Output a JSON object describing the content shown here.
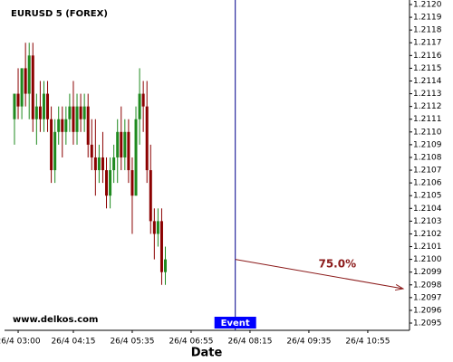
{
  "chart_data": {
    "type": "candlestick",
    "title": "EURUSD 5 (FOREX)",
    "watermark": "www.delkos.com",
    "x_label": "Date",
    "up_color": "#1f8a1f",
    "down_color": "#8b0000",
    "xlim": [
      161.5,
      711.7
    ],
    "ylim": [
      1.2095,
      1.212
    ],
    "xticks": [
      {
        "value": 180,
        "label": "26/4 03:00"
      },
      {
        "value": 255,
        "label": "26/4 04:15"
      },
      {
        "value": 335,
        "label": "26/4 05:35"
      },
      {
        "value": 415,
        "label": "26/4 06:55"
      },
      {
        "value": 495,
        "label": "26/4 08:15"
      },
      {
        "value": 575,
        "label": "26/4 09:35"
      },
      {
        "value": 655,
        "label": "26/4 10:55"
      }
    ],
    "yticks": [
      1.2095,
      1.2096,
      1.2097,
      1.2098,
      1.2099,
      {
        "value": 1.21,
        "label": "1.2100"
      },
      1.2101,
      1.2102,
      1.2103,
      1.2104,
      1.2105,
      1.2106,
      1.2107,
      1.2108,
      1.2109,
      {
        "value": 1.211,
        "label": "1.2110"
      },
      1.2111,
      1.2112,
      1.2113,
      1.2114,
      1.2115,
      1.2116,
      1.2117,
      1.2118,
      1.2119,
      {
        "value": 1.212,
        "label": "1.2120"
      }
    ],
    "x": [
      175,
      180,
      185,
      190,
      195,
      200,
      205,
      210,
      215,
      220,
      225,
      230,
      235,
      240,
      245,
      250,
      255,
      260,
      265,
      270,
      275,
      280,
      285,
      290,
      295,
      300,
      305,
      310,
      315,
      320,
      325,
      330,
      335,
      340,
      345,
      350,
      355,
      360,
      365,
      370,
      375,
      380
    ],
    "open": [
      1.2111,
      1.2113,
      1.2112,
      1.2115,
      1.2113,
      1.2116,
      1.2111,
      1.2112,
      1.2111,
      1.2113,
      1.2111,
      1.2107,
      1.211,
      1.2111,
      1.211,
      1.2111,
      1.2112,
      1.211,
      1.2112,
      1.2111,
      1.2112,
      1.2109,
      1.2108,
      1.2107,
      1.2108,
      1.2107,
      1.2105,
      1.2107,
      1.2108,
      1.211,
      1.2108,
      1.211,
      1.2107,
      1.2105,
      1.2111,
      1.2113,
      1.2112,
      1.2107,
      1.2103,
      1.2102,
      1.2103,
      1.2099
    ],
    "high": [
      1.2113,
      1.2115,
      1.2115,
      1.2117,
      1.2117,
      1.2117,
      1.2113,
      1.2114,
      1.2114,
      1.2114,
      1.2112,
      1.2111,
      1.2112,
      1.2112,
      1.2112,
      1.2113,
      1.2114,
      1.2113,
      1.2113,
      1.2113,
      1.2113,
      1.2111,
      1.2111,
      1.2109,
      1.211,
      1.2108,
      1.2108,
      1.2109,
      1.2111,
      1.2112,
      1.2111,
      1.2111,
      1.2108,
      1.2112,
      1.2115,
      1.2114,
      1.2114,
      1.2109,
      1.2104,
      1.2104,
      1.2104,
      1.2101
    ],
    "low": [
      1.2109,
      1.2111,
      1.2111,
      1.2112,
      1.2111,
      1.211,
      1.2109,
      1.211,
      1.211,
      1.211,
      1.2106,
      1.2106,
      1.2109,
      1.2108,
      1.2109,
      1.211,
      1.2109,
      1.2109,
      1.211,
      1.211,
      1.2108,
      1.2107,
      1.2105,
      1.2106,
      1.2106,
      1.2104,
      1.2104,
      1.2106,
      1.2106,
      1.2107,
      1.2107,
      1.2106,
      1.2102,
      1.2105,
      1.2109,
      1.211,
      1.2106,
      1.2102,
      1.21,
      1.2101,
      1.2098,
      1.2098
    ],
    "close": [
      1.2113,
      1.2112,
      1.2115,
      1.2113,
      1.2116,
      1.2111,
      1.2112,
      1.2111,
      1.2113,
      1.2111,
      1.2107,
      1.211,
      1.2111,
      1.211,
      1.2111,
      1.2112,
      1.211,
      1.2112,
      1.2111,
      1.2112,
      1.2109,
      1.2108,
      1.2107,
      1.2108,
      1.2107,
      1.2105,
      1.2107,
      1.2108,
      1.211,
      1.2108,
      1.211,
      1.2107,
      1.2105,
      1.2111,
      1.2113,
      1.2112,
      1.2107,
      1.2103,
      1.2102,
      1.2103,
      1.2099,
      1.21
    ],
    "event": {
      "label": "Event",
      "x": 475,
      "color": "#00008b"
    },
    "forecast": {
      "label": "75.0%",
      "x_start": 475,
      "y_start": 1.21,
      "x_end": 703,
      "y_end": 1.20977,
      "color": "#8b1a1a"
    }
  }
}
